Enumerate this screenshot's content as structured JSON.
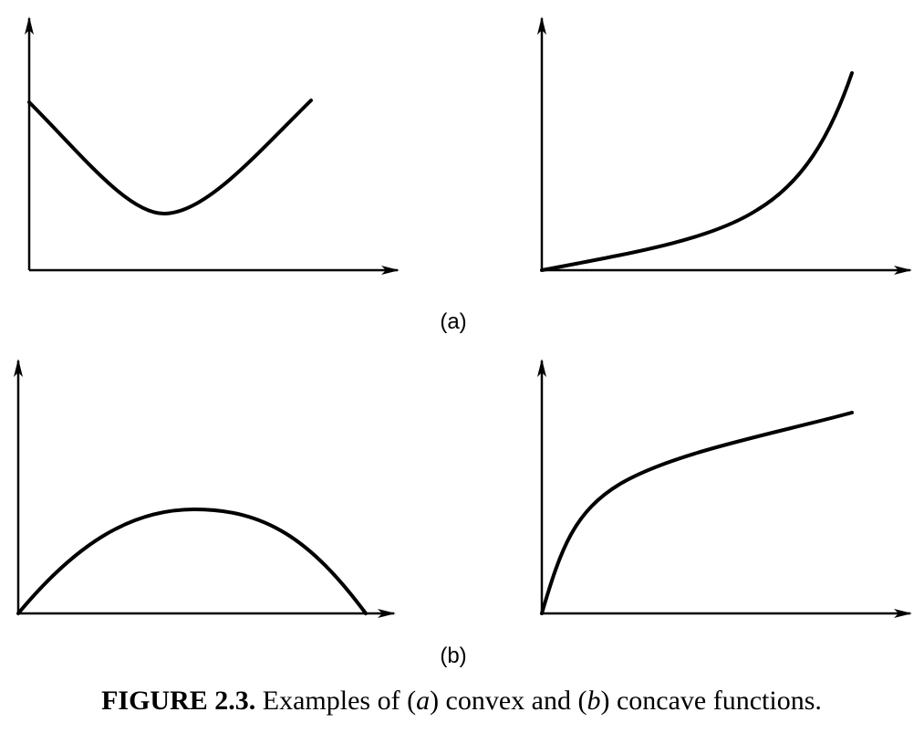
{
  "panels": [
    {
      "label": "(a)"
    },
    {
      "label": "(b)"
    }
  ],
  "caption": {
    "label": "FIGURE 2.3.",
    "parts": [
      "Examples of (",
      "a",
      ") convex and (",
      "b",
      ") concave functions."
    ]
  }
}
